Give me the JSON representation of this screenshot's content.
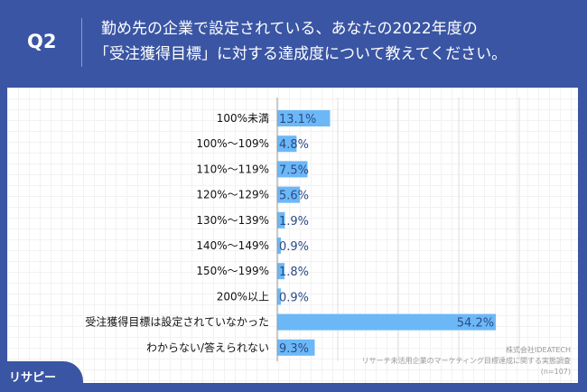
{
  "header": {
    "question": "Q2",
    "title_line1": "勤め先の企業で設定されている、あなたの2022年度の",
    "title_line2": "「受注獲得目標」に対する達成度について教えてください。"
  },
  "chart_data": {
    "type": "bar",
    "orientation": "horizontal",
    "categories": [
      "100%未満",
      "100%～109%",
      "110%～119%",
      "120%～129%",
      "130%～139%",
      "140%～149%",
      "150%～199%",
      "200%以上",
      "受注獲得目標は設定されていなかった",
      "わからない/答えられない"
    ],
    "values": [
      13.1,
      4.8,
      7.5,
      5.6,
      1.9,
      0.9,
      1.8,
      0.9,
      54.2,
      9.3
    ],
    "labels": [
      "13.1%",
      "4.8%",
      "7.5%",
      "5.6%",
      "1.9%",
      "0.9%",
      "1.8%",
      "0.9%",
      "54.2%",
      "9.3%"
    ],
    "xlim": [
      0,
      60
    ],
    "grid": true,
    "bar_color": "#6cb8f7"
  },
  "source": {
    "company": "株式会社IDEATECH",
    "survey": "リサーチ未活用企業のマーケティング目標達成に関する実態調査",
    "n": "(n=107)"
  },
  "logo": {
    "text": "リサピー"
  },
  "colors": {
    "background": "#3a55a3",
    "bar": "#6cb8f7"
  }
}
